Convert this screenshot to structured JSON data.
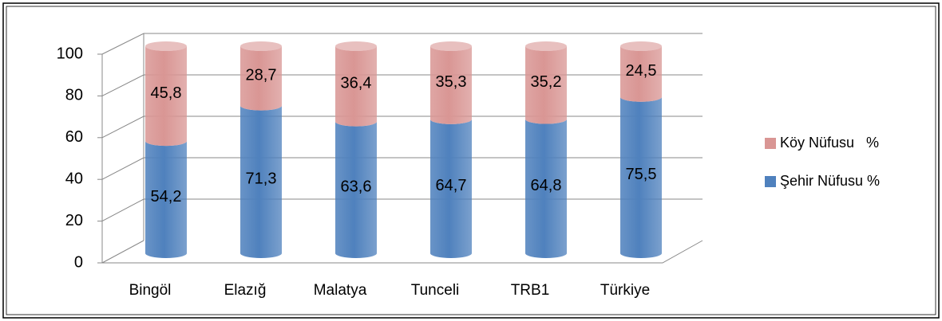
{
  "chart_data": {
    "type": "bar3d_stacked",
    "categories": [
      "Bingöl",
      "Elazığ",
      "Malatya",
      "Tunceli",
      "TRB1",
      "Türkiye"
    ],
    "series": [
      {
        "name": "Şehir Nüfusu %",
        "color": "#4f81bd",
        "values": [
          54.2,
          71.3,
          63.6,
          64.7,
          64.8,
          75.5
        ],
        "value_labels": [
          "54,2",
          "71,3",
          "63,6",
          "64,7",
          "64,8",
          "75,5"
        ]
      },
      {
        "name": "Köy Nüfusu   %",
        "color": "#d99694",
        "values": [
          45.8,
          28.7,
          36.4,
          35.3,
          35.2,
          24.5
        ],
        "value_labels": [
          "45,8",
          "28,7",
          "36,4",
          "35,3",
          "35,2",
          "24,5"
        ]
      }
    ],
    "ylim": [
      0,
      100
    ],
    "yticks": [
      0,
      20,
      40,
      60,
      80,
      100
    ],
    "grid": true,
    "legend": "right"
  }
}
